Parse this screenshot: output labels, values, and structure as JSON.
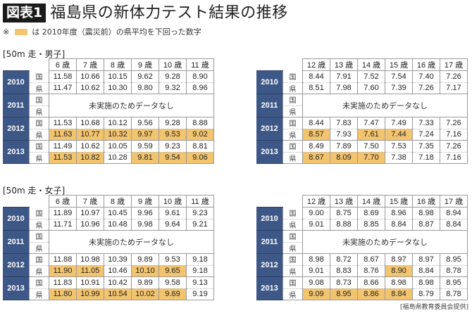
{
  "header": {
    "badge": "図表1",
    "title": "福島県の新体力テスト結果の推移",
    "note_prefix": "※",
    "note_text": "は 2010年度（震災前）の県平均を下回った数字",
    "highlight_color": "#f3c46e",
    "year_color": "#3d5787"
  },
  "sections": {
    "boys_label": "[50m 走・男子]",
    "girls_label": "[50m 走・女子]"
  },
  "row_labels": {
    "national": "国",
    "prefecture": "県"
  },
  "no_data_text": "未実施のためデータなし",
  "years": [
    "2010",
    "2011",
    "2012",
    "2013"
  ],
  "tables": {
    "boys_young": {
      "ages": [
        "6 歳",
        "7 歳",
        "8 歳",
        "9 歳",
        "10 歳",
        "11 歳"
      ],
      "y2010": {
        "national": [
          "11.58",
          "10.66",
          "10.15",
          "9.62",
          "9.28",
          "8.90"
        ],
        "prefecture": [
          "11.47",
          "10.62",
          "10.30",
          "9.80",
          "9.32",
          "8.96"
        ]
      },
      "y2012": {
        "national": [
          "11.53",
          "10.68",
          "10.12",
          "9.56",
          "9.28",
          "8.88"
        ],
        "prefecture": [
          "11.63",
          "10.77",
          "10.32",
          "9.97",
          "9.53",
          "9.02"
        ]
      },
      "y2013": {
        "national": [
          "11.49",
          "10.62",
          "10.05",
          "9.59",
          "9.23",
          "8.81"
        ],
        "prefecture": [
          "11.53",
          "10.82",
          "10.28",
          "9.81",
          "9.54",
          "9.06"
        ]
      }
    },
    "boys_old": {
      "ages": [
        "12 歳",
        "13 歳",
        "14 歳",
        "15 歳",
        "16 歳",
        "17 歳"
      ],
      "y2010": {
        "national": [
          "8.44",
          "7.91",
          "7.52",
          "7.54",
          "7.40",
          "7.26"
        ],
        "prefecture": [
          "8.51",
          "7.98",
          "7.60",
          "7.39",
          "7.26",
          "7.17"
        ]
      },
      "y2012": {
        "national": [
          "8.44",
          "7.83",
          "7.47",
          "7.49",
          "7.33",
          "7.26"
        ],
        "prefecture": [
          "8.57",
          "7.93",
          "7.61",
          "7.44",
          "7.24",
          "7.16"
        ]
      },
      "y2013": {
        "national": [
          "8.49",
          "7.89",
          "7.50",
          "7.53",
          "7.35",
          "7.26"
        ],
        "prefecture": [
          "8.67",
          "8.09",
          "7.70",
          "7.38",
          "7.18",
          "7.16"
        ]
      }
    },
    "girls_young": {
      "ages": [
        "6 歳",
        "7 歳",
        "8 歳",
        "9 歳",
        "10 歳",
        "11 歳"
      ],
      "y2010": {
        "national": [
          "11.89",
          "10.97",
          "10.45",
          "9.96",
          "9.61",
          "9.23"
        ],
        "prefecture": [
          "11.71",
          "10.96",
          "10.48",
          "9.98",
          "9.64",
          "9.21"
        ]
      },
      "y2012": {
        "national": [
          "11.88",
          "10.98",
          "10.39",
          "9.89",
          "9.53",
          "9.18"
        ],
        "prefecture": [
          "11.90",
          "11.05",
          "10.46",
          "10.10",
          "9.65",
          "9.18"
        ]
      },
      "y2013": {
        "national": [
          "11.83",
          "10.91",
          "10.42",
          "9.89",
          "9.58",
          "9.13"
        ],
        "prefecture": [
          "11.80",
          "10.99",
          "10.54",
          "10.02",
          "9.69",
          "9.19"
        ]
      }
    },
    "girls_old": {
      "ages": [
        "12 歳",
        "13 歳",
        "14 歳",
        "15 歳",
        "16 歳",
        "17 歳"
      ],
      "y2010": {
        "national": [
          "9.00",
          "8.75",
          "8.69",
          "8.96",
          "8.98",
          "8.94"
        ],
        "prefecture": [
          "9.01",
          "8.88",
          "8.85",
          "8.84",
          "8.87",
          "8.84"
        ]
      },
      "y2012": {
        "national": [
          "8.98",
          "8.72",
          "8.67",
          "8.97",
          "8.97",
          "8.95"
        ],
        "prefecture": [
          "9.01",
          "8.83",
          "8.76",
          "8.90",
          "8.84",
          "8.78"
        ]
      },
      "y2013": {
        "national": [
          "9.08",
          "8.73",
          "8.66",
          "8.98",
          "8.98",
          "8.95"
        ],
        "prefecture": [
          "9.09",
          "8.95",
          "8.86",
          "8.84",
          "8.79",
          "8.78"
        ]
      }
    }
  },
  "highlighted_cells": {
    "boys_young": {
      "y2012": [
        0,
        1,
        2,
        3,
        4,
        5
      ],
      "y2013": [
        0,
        1,
        3,
        4,
        5
      ]
    },
    "boys_old": {
      "y2012": [
        0,
        2,
        3
      ],
      "y2013": [
        0,
        1,
        2
      ]
    },
    "girls_young": {
      "y2012": [
        0,
        1,
        3,
        4
      ],
      "y2013": [
        0,
        1,
        2,
        3,
        4
      ]
    },
    "girls_old": {
      "y2012": [
        3
      ],
      "y2013": [
        0,
        1,
        2,
        3
      ]
    }
  },
  "credit": "[福島県教育委員会提供]"
}
